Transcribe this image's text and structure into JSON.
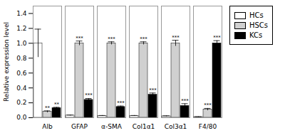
{
  "chart_data": {
    "type": "bar",
    "categories": [
      "Alb",
      "GFAP",
      "α-SMA",
      "Col1α1",
      "Col3α1",
      "F4/80"
    ],
    "series": [
      {
        "name": "HCs",
        "color": "white",
        "values": [
          1.0,
          0.03,
          0.025,
          0.025,
          0.02,
          0.01
        ],
        "errors": [
          0.19,
          0.005,
          0.005,
          0.005,
          0.005,
          0.003
        ]
      },
      {
        "name": "HSCs",
        "color": "#d0d0d0",
        "values": [
          0.08,
          1.0,
          1.0,
          1.0,
          1.0,
          0.11
        ],
        "errors": [
          0.012,
          0.03,
          0.02,
          0.02,
          0.04,
          0.015
        ],
        "annotations": [
          "**",
          "***",
          "***",
          "***",
          "***",
          "***"
        ]
      },
      {
        "name": "KCs",
        "color": "black",
        "values": [
          0.13,
          0.24,
          0.145,
          0.31,
          0.16,
          1.0
        ],
        "errors": [
          0.01,
          0.018,
          0.012,
          0.022,
          0.028,
          0.035
        ],
        "annotations": [
          "**",
          "***",
          "***",
          "***",
          "***",
          "***"
        ]
      }
    ],
    "ylabel": "Relative expression level",
    "ylim": [
      0,
      1.5
    ],
    "yticks": [
      {
        "value": 0,
        "label": "0.0"
      },
      0.2,
      0.4,
      0.6,
      0.8,
      {
        "value": 1,
        "label": "1.0"
      },
      1.2,
      1.4
    ],
    "grid": false,
    "legend": "right"
  }
}
